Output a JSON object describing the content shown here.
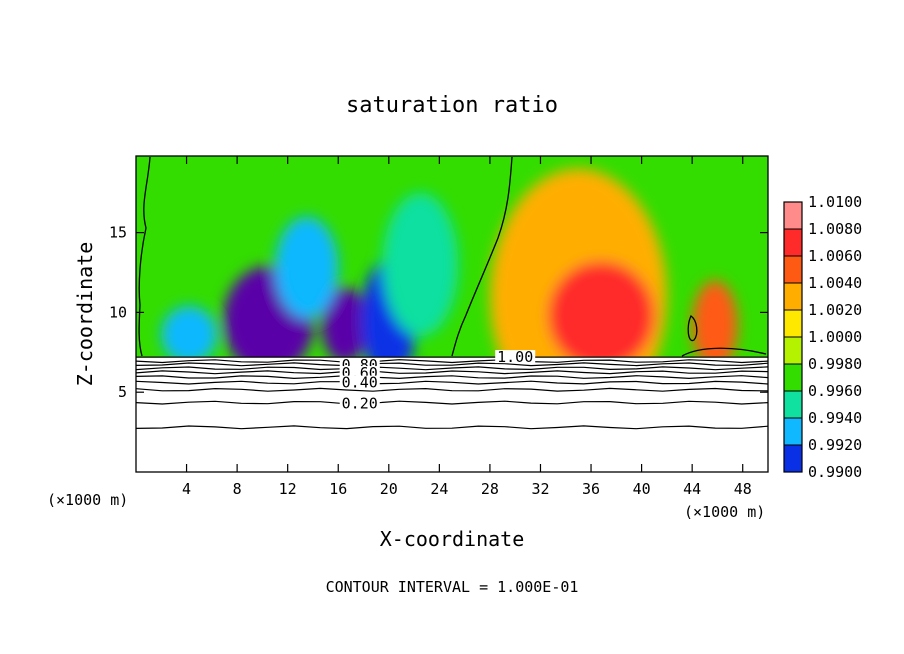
{
  "chart_data": {
    "type": "heatmap",
    "title": "saturation ratio",
    "xlabel": "X-coordinate",
    "ylabel": "Z-coordinate",
    "x_unit_left": "(×1000 m)",
    "x_unit_right": "(×1000 m)",
    "xlim": [
      0,
      50
    ],
    "ylim": [
      0,
      19.8
    ],
    "x_ticks": [
      4,
      8,
      12,
      16,
      20,
      24,
      28,
      32,
      36,
      40,
      44,
      48
    ],
    "y_ticks": [
      5,
      10,
      15
    ],
    "grid": false,
    "footer": "CONTOUR INTERVAL = 1.000E-01",
    "colorbar": {
      "levels": [
        "1.0100",
        "1.0080",
        "1.0060",
        "1.0040",
        "1.0020",
        "1.0000",
        "0.9980",
        "0.9960",
        "0.9940",
        "0.9920",
        "0.9900"
      ],
      "colors": [
        "#ff8b8b",
        "#ff2a2a",
        "#ff5a14",
        "#ffae00",
        "#ffe800",
        "#b4f200",
        "#33dd00",
        "#10e0a0",
        "#10b8ff",
        "#0a30e6",
        "#5a00a8"
      ],
      "range": [
        0.99,
        1.01
      ]
    },
    "boundary_height": 7.2,
    "contour_labels": [
      {
        "text": "0.80",
        "x": 17.7,
        "y": 6.7
      },
      {
        "text": "0.60",
        "x": 17.7,
        "y": 6.2
      },
      {
        "text": "0.40",
        "x": 17.7,
        "y": 5.6
      },
      {
        "text": "0.20",
        "x": 17.7,
        "y": 4.3
      },
      {
        "text": "1.00",
        "x": 30.0,
        "y": 7.2
      }
    ],
    "lower_contours": [
      6.95,
      6.75,
      6.5,
      6.25,
      5.95,
      5.6,
      5.15,
      4.35,
      2.8
    ],
    "blobs": [
      {
        "x": 10.5,
        "y": 9.5,
        "rx": 3.6,
        "ry": 3.4,
        "v": 0.9905
      },
      {
        "x": 16.5,
        "y": 9.2,
        "rx": 1.8,
        "ry": 2.4,
        "v": 0.9915
      },
      {
        "x": 20.0,
        "y": 9.5,
        "rx": 2.2,
        "ry": 3.8,
        "v": 0.992
      },
      {
        "x": 13.5,
        "y": 12.8,
        "rx": 2.5,
        "ry": 3.2,
        "v": 0.9945
      },
      {
        "x": 4.2,
        "y": 8.6,
        "rx": 2.2,
        "ry": 1.8,
        "v": 0.995
      },
      {
        "x": 22.5,
        "y": 13.0,
        "rx": 3.0,
        "ry": 4.5,
        "v": 0.996
      },
      {
        "x": 35.0,
        "y": 11.0,
        "rx": 7.0,
        "ry": 8.0,
        "v": 1.003
      },
      {
        "x": 36.8,
        "y": 9.8,
        "rx": 4.2,
        "ry": 3.4,
        "v": 1.007
      },
      {
        "x": 45.8,
        "y": 9.2,
        "rx": 1.8,
        "ry": 2.8,
        "v": 1.006
      }
    ]
  }
}
